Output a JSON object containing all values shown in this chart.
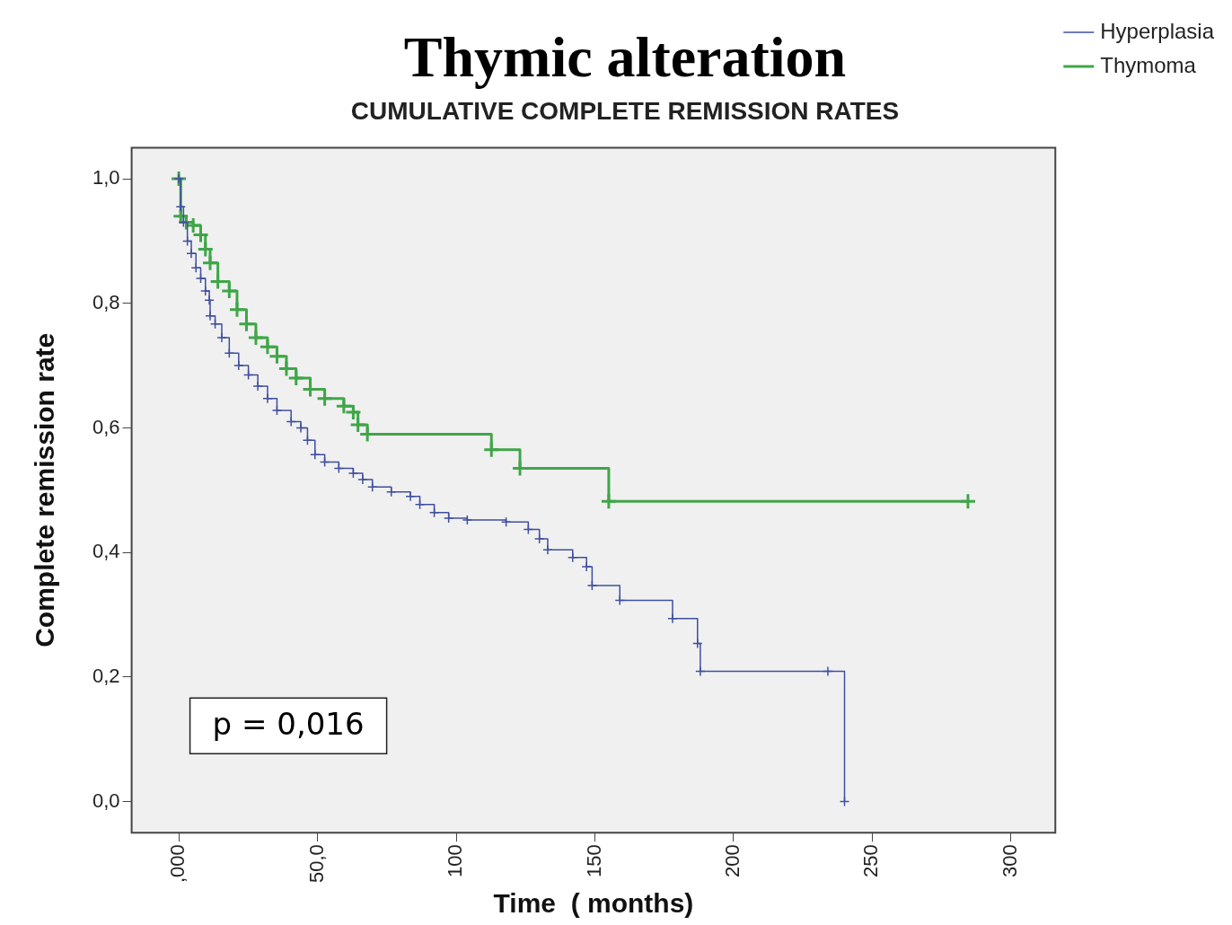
{
  "chart_data": {
    "type": "step",
    "title": "Thymic alteration",
    "subtitle": "CUMULATIVE COMPLETE REMISSION RATES",
    "xlabel": "Time  ( months)",
    "ylabel": "Complete remission rate",
    "xlim": [
      -17,
      316
    ],
    "ylim": [
      -0.05,
      1.05
    ],
    "xticks": [
      {
        "value": 0,
        "label": ",000"
      },
      {
        "value": 50,
        "label": "50,0"
      },
      100,
      150,
      200,
      250,
      300
    ],
    "yticks": [
      {
        "value": 0,
        "label": "0,0"
      },
      {
        "value": 0.2,
        "label": "0,2"
      },
      {
        "value": 0.4,
        "label": "0,4"
      },
      {
        "value": 0.6,
        "label": "0,6"
      },
      {
        "value": 0.8,
        "label": "0,8"
      },
      {
        "value": 1,
        "label": "1,0"
      }
    ],
    "legend": "top right",
    "marker": "cross",
    "line_style": "solid",
    "grid": false,
    "annotations": [
      "p = 0,016"
    ],
    "series": [
      {
        "name": "Hyperplasia",
        "color": "#3f4f9e",
        "x": [
          0,
          0.7,
          1.7,
          3.1,
          4.5,
          6.2,
          7.9,
          9.6,
          11,
          11.3,
          13.1,
          15.5,
          18.2,
          21.6,
          25.1,
          28.5,
          32,
          35.4,
          40.5,
          44,
          46.4,
          49.1,
          52.6,
          57.7,
          62.9,
          66.3,
          69.8,
          76.6,
          83.5,
          86.9,
          92.1,
          97.3,
          104,
          118,
          126,
          130,
          133,
          142,
          147,
          149,
          159,
          178,
          187,
          188,
          234,
          240
        ],
        "values": [
          1,
          0.955,
          0.93,
          0.9,
          0.88,
          0.857,
          0.84,
          0.82,
          0.805,
          0.78,
          0.767,
          0.745,
          0.72,
          0.7,
          0.685,
          0.667,
          0.647,
          0.628,
          0.61,
          0.6,
          0.58,
          0.557,
          0.545,
          0.535,
          0.527,
          0.517,
          0.505,
          0.497,
          0.49,
          0.477,
          0.464,
          0.455,
          0.452,
          0.449,
          0.437,
          0.422,
          0.404,
          0.392,
          0.377,
          0.347,
          0.323,
          0.294,
          0.254,
          0.209,
          0.209,
          0
        ]
      },
      {
        "name": "Thymoma",
        "color": "#3fa648",
        "x": [
          0,
          0.7,
          2.7,
          5.2,
          7.9,
          9.6,
          11.3,
          14.1,
          18.2,
          21,
          24.4,
          27.8,
          32,
          35.4,
          38.8,
          42.3,
          47.4,
          52.6,
          59.5,
          62.9,
          64.6,
          68,
          112.7,
          123,
          155,
          284.5
        ],
        "values": [
          1,
          0.94,
          0.93,
          0.925,
          0.91,
          0.887,
          0.865,
          0.835,
          0.82,
          0.79,
          0.767,
          0.745,
          0.73,
          0.715,
          0.695,
          0.68,
          0.662,
          0.647,
          0.635,
          0.625,
          0.605,
          0.59,
          0.565,
          0.535,
          0.482,
          0.482
        ]
      }
    ]
  }
}
